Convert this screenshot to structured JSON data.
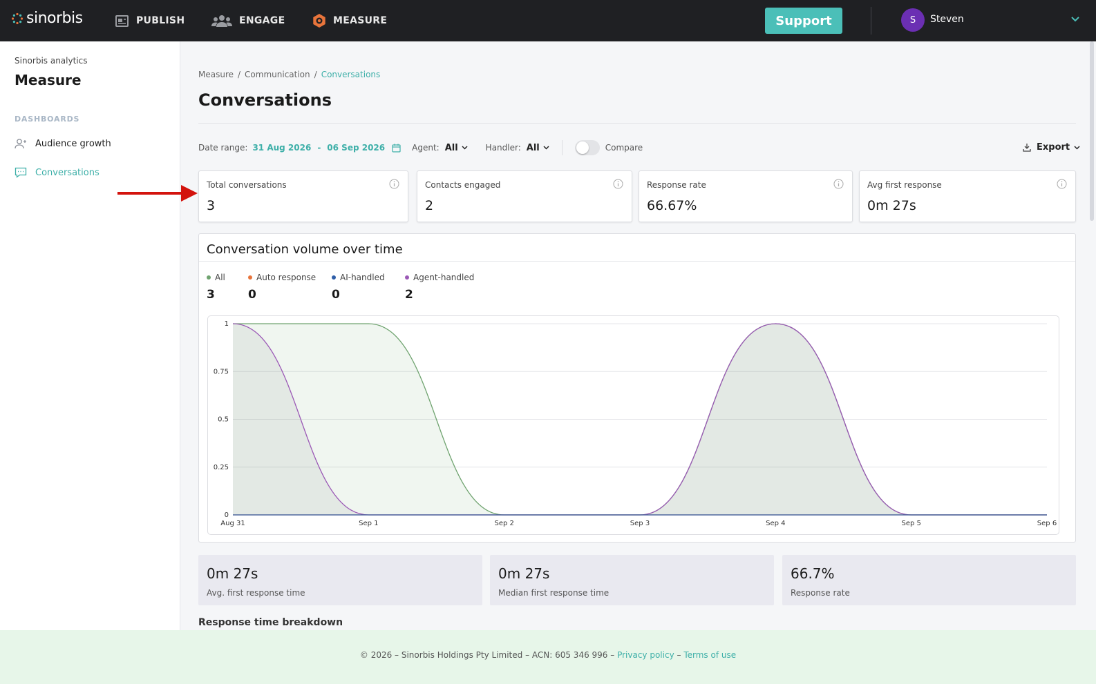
{
  "topbar": {
    "logo_text": "sinorbis",
    "nav": [
      {
        "label": "PUBLISH",
        "icon": "publish-icon"
      },
      {
        "label": "ENGAGE",
        "icon": "engage-icon"
      },
      {
        "label": "MEASURE",
        "icon": "measure-icon"
      }
    ],
    "support_label": "Support",
    "user": {
      "initial": "S",
      "name": "Steven"
    },
    "colors": {
      "bar": "#1f2023",
      "support": "#4bbfb8",
      "avatar": "#6b2fb3",
      "measure_accent": "#e8743b"
    }
  },
  "sidebar": {
    "subtitle": "Sinorbis analytics",
    "title": "Measure",
    "section": "DASHBOARDS",
    "items": [
      {
        "label": "Audience growth",
        "icon": "audience-icon",
        "active": false
      },
      {
        "label": "Conversations",
        "icon": "chat-icon",
        "active": true
      }
    ]
  },
  "breadcrumb": [
    "Measure",
    "Communication",
    "Conversations"
  ],
  "breadcrumb_sep": "/",
  "page_title": "Conversations",
  "filters": {
    "date_label": "Date range:",
    "date_start": "31 Aug 2026",
    "date_sep": "-",
    "date_end": "06 Sep 2026",
    "agent_label": "Agent:",
    "agent_value": "All",
    "handler_label": "Handler:",
    "handler_value": "All",
    "compare_label": "Compare",
    "compare_on": false,
    "export_label": "Export"
  },
  "kpis": [
    {
      "label": "Total conversations",
      "value": "3"
    },
    {
      "label": "Contacts engaged",
      "value": "2"
    },
    {
      "label": "Response rate",
      "value": "66.67%"
    },
    {
      "label": "Avg first response",
      "value": "0m 27s"
    }
  ],
  "chart_card": {
    "title": "Conversation volume over time",
    "legend": [
      {
        "name": "All",
        "value": "3",
        "color": "#6fa36f"
      },
      {
        "name": "Auto response",
        "value": "0",
        "color": "#e8743b"
      },
      {
        "name": "AI-handled",
        "value": "0",
        "color": "#2f5ea8"
      },
      {
        "name": "Agent-handled",
        "value": "2",
        "color": "#9b59b6"
      }
    ]
  },
  "chart_data": {
    "type": "area",
    "x": [
      "Aug 31",
      "Sep 1",
      "Sep 2",
      "Sep 3",
      "Sep 4",
      "Sep 5",
      "Sep 6"
    ],
    "ylim": [
      0,
      1
    ],
    "yticks": [
      "0",
      "0.25",
      "0.5",
      "0.75",
      "1"
    ],
    "grid": true,
    "series": [
      {
        "name": "All",
        "values": [
          1,
          1,
          0,
          0,
          1,
          0,
          0
        ],
        "color": "#6fa36f"
      },
      {
        "name": "Auto response",
        "values": [
          0,
          0,
          0,
          0,
          0,
          0,
          0
        ],
        "color": "#e8743b"
      },
      {
        "name": "AI-handled",
        "values": [
          0,
          0,
          0,
          0,
          0,
          0,
          0
        ],
        "color": "#2f5ea8"
      },
      {
        "name": "Agent-handled",
        "values": [
          1,
          0,
          0,
          0,
          1,
          0,
          0
        ],
        "color": "#9b59b6"
      }
    ]
  },
  "stats": [
    {
      "value": "0m 27s",
      "label": "Avg. first response time"
    },
    {
      "value": "0m 27s",
      "label": "Median first response time"
    },
    {
      "value": "66.7%",
      "label": "Response rate"
    }
  ],
  "partial_heading": "Response time breakdown",
  "footer": {
    "text": "© 2026 – Sinorbis Holdings Pty Limited – ACN: 605 346 996 –",
    "privacy": "Privacy policy",
    "sep": "–",
    "terms": "Terms of use"
  }
}
